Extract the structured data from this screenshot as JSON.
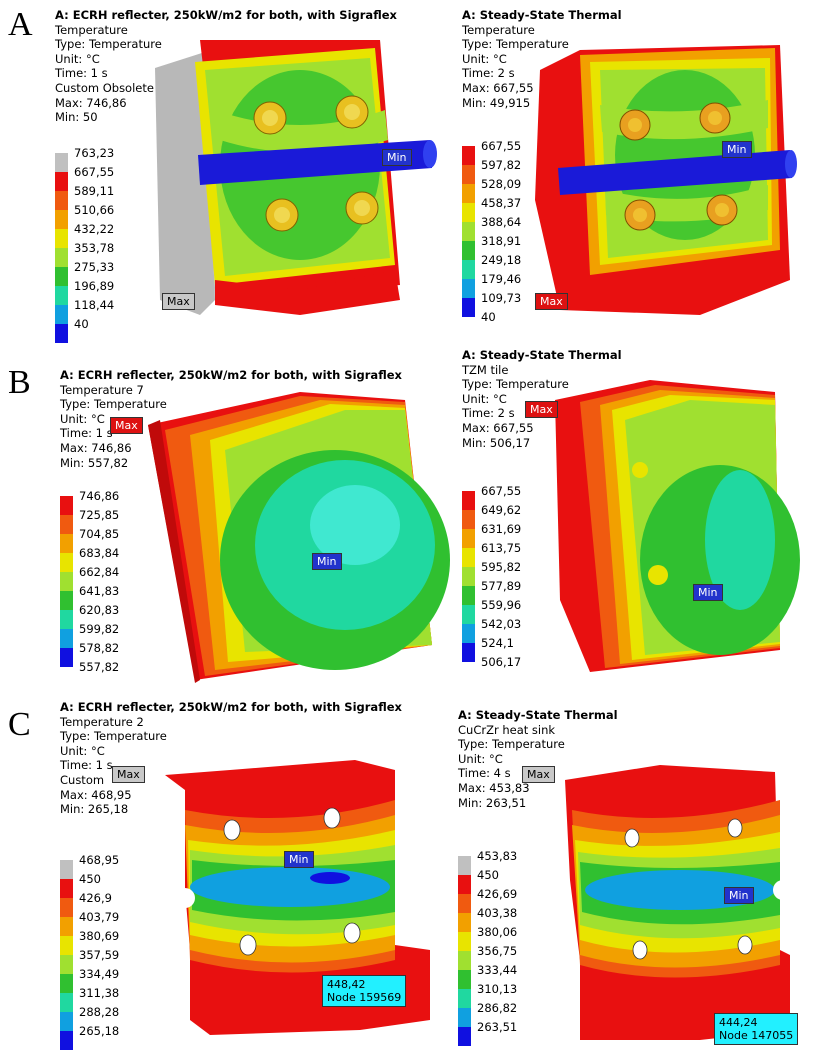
{
  "panels": [
    {
      "letter": "A",
      "left": {
        "title": "A: ECRH reflecter, 250kW/m2 for both, with Sigraflex",
        "lines": [
          "Temperature",
          "Type: Temperature",
          "Unit: °C",
          "Time: 1 s",
          "Custom Obsolete",
          "Max: 746,86",
          "Min: 50"
        ],
        "legend": [
          "763,23",
          "667,55",
          "589,11",
          "510,66",
          "432,22",
          "353,78",
          "275,33",
          "196,89",
          "118,44",
          "40"
        ],
        "colors": [
          "#c0c0c0",
          "#e81010",
          "#f05a10",
          "#f2a000",
          "#e8e400",
          "#a0e030",
          "#30c030",
          "#20d8a0",
          "#10a0e0",
          "#1010e0"
        ],
        "tags": {
          "max": "Max",
          "min": "Min"
        }
      },
      "right": {
        "title": "A: Steady-State Thermal",
        "lines": [
          "Temperature",
          "Type: Temperature",
          "Unit: °C",
          "Time: 2 s",
          "Max: 667,55",
          "Min: 49,915"
        ],
        "legend": [
          "667,55",
          "597,82",
          "528,09",
          "458,37",
          "388,64",
          "318,91",
          "249,18",
          "179,46",
          "109,73",
          "40"
        ],
        "colors": [
          "#e81010",
          "#f05a10",
          "#f2a000",
          "#e8e400",
          "#a0e030",
          "#30c030",
          "#20d8a0",
          "#10a0e0",
          "#1010e0"
        ],
        "tags": {
          "max": "Max",
          "min": "Min"
        }
      }
    },
    {
      "letter": "B",
      "left": {
        "title": "A: ECRH reflecter, 250kW/m2 for both, with Sigraflex",
        "lines": [
          "Temperature 7",
          "Type: Temperature",
          "Unit: °C",
          "Time: 1 s",
          "Max: 746,86",
          "Min: 557,82"
        ],
        "legend": [
          "746,86",
          "725,85",
          "704,85",
          "683,84",
          "662,84",
          "641,83",
          "620,83",
          "599,82",
          "578,82",
          "557,82"
        ],
        "colors": [
          "#e81010",
          "#f05a10",
          "#f2a000",
          "#e8e400",
          "#a0e030",
          "#30c030",
          "#20d8a0",
          "#10a0e0",
          "#1010e0"
        ],
        "tags": {
          "max": "Max",
          "min": "Min"
        }
      },
      "right": {
        "title": "A: Steady-State Thermal",
        "lines": [
          "TZM tile",
          "Type: Temperature",
          "Unit: °C",
          "Time: 2 s",
          "Max: 667,55",
          "Min: 506,17"
        ],
        "legend": [
          "667,55",
          "649,62",
          "631,69",
          "613,75",
          "595,82",
          "577,89",
          "559,96",
          "542,03",
          "524,1",
          "506,17"
        ],
        "colors": [
          "#e81010",
          "#f05a10",
          "#f2a000",
          "#e8e400",
          "#a0e030",
          "#30c030",
          "#20d8a0",
          "#10a0e0",
          "#1010e0"
        ],
        "tags": {
          "max": "Max",
          "min": "Min"
        }
      }
    },
    {
      "letter": "C",
      "left": {
        "title": "A: ECRH reflecter, 250kW/m2 for both, with Sigraflex",
        "lines": [
          "Temperature 2",
          "Type: Temperature",
          "Unit: °C",
          "Time: 1 s",
          "Custom",
          "Max: 468,95",
          "Min: 265,18"
        ],
        "legend": [
          "468,95",
          "450",
          "426,9",
          "403,79",
          "380,69",
          "357,59",
          "334,49",
          "311,38",
          "288,28",
          "265,18"
        ],
        "colors": [
          "#c0c0c0",
          "#e81010",
          "#f05a10",
          "#f2a000",
          "#e8e400",
          "#a0e030",
          "#30c030",
          "#20d8a0",
          "#10a0e0",
          "#1010e0"
        ],
        "tags": {
          "max": "Max",
          "min": "Min"
        },
        "probe": "448,42\nNode 159569"
      },
      "right": {
        "title": "A: Steady-State Thermal",
        "lines": [
          "CuCrZr heat sink",
          "Type: Temperature",
          "Unit: °C",
          "Time: 4 s",
          "Max: 453,83",
          "Min: 263,51"
        ],
        "legend": [
          "453,83",
          "450",
          "426,69",
          "403,38",
          "380,06",
          "356,75",
          "333,44",
          "310,13",
          "286,82",
          "263,51"
        ],
        "colors": [
          "#c0c0c0",
          "#e81010",
          "#f05a10",
          "#f2a000",
          "#e8e400",
          "#a0e030",
          "#30c030",
          "#20d8a0",
          "#10a0e0",
          "#1010e0"
        ],
        "tags": {
          "max": "Max",
          "min": "Min"
        },
        "probe": "444,24\nNode 147055"
      }
    }
  ]
}
